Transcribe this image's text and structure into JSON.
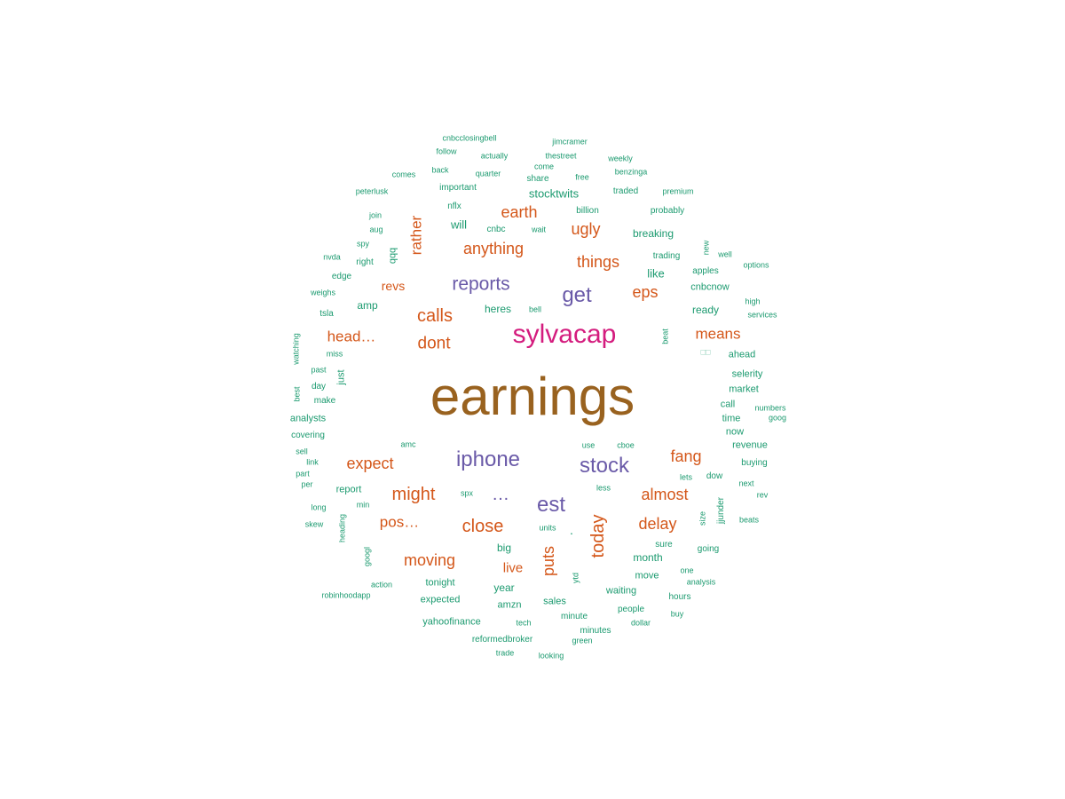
{
  "colors": {
    "earnings": "#99621f",
    "magenta": "#d41c7e",
    "purple": "#6a5aa8",
    "orange": "#d4571a",
    "green": "#1b9a6f"
  },
  "words": [
    {
      "text": "earnings",
      "c": "c1"
    },
    {
      "text": "sylvacap",
      "c": "c2"
    },
    {
      "text": "iphone",
      "c": "c3"
    },
    {
      "text": "stock",
      "c": "c3"
    },
    {
      "text": "get",
      "c": "c3"
    },
    {
      "text": "reports",
      "c": "c3"
    },
    {
      "text": "est",
      "c": "c3"
    },
    {
      "text": "…",
      "c": "c3"
    },
    {
      "text": "calls",
      "c": "c4"
    },
    {
      "text": "dont",
      "c": "c4"
    },
    {
      "text": "anything",
      "c": "c4"
    },
    {
      "text": "earth",
      "c": "c4"
    },
    {
      "text": "ugly",
      "c": "c4"
    },
    {
      "text": "things",
      "c": "c4"
    },
    {
      "text": "eps",
      "c": "c4"
    },
    {
      "text": "means",
      "c": "c4"
    },
    {
      "text": "head…",
      "c": "c4"
    },
    {
      "text": "revs",
      "c": "c4"
    },
    {
      "text": "rather",
      "c": "c4"
    },
    {
      "text": "expect",
      "c": "c4"
    },
    {
      "text": "might",
      "c": "c4"
    },
    {
      "text": "pos…",
      "c": "c4"
    },
    {
      "text": "close",
      "c": "c4"
    },
    {
      "text": "moving",
      "c": "c4"
    },
    {
      "text": "live",
      "c": "c4"
    },
    {
      "text": "puts",
      "c": "c4"
    },
    {
      "text": "today",
      "c": "c4"
    },
    {
      "text": "fang",
      "c": "c4"
    },
    {
      "text": "almost",
      "c": "c4"
    },
    {
      "text": "delay",
      "c": "c4"
    },
    {
      "text": "cnbcclosingbell",
      "c": "c5"
    },
    {
      "text": "jimcramer",
      "c": "c5"
    },
    {
      "text": "follow",
      "c": "c5"
    },
    {
      "text": "actually",
      "c": "c5"
    },
    {
      "text": "thestreet",
      "c": "c5"
    },
    {
      "text": "weekly",
      "c": "c5"
    },
    {
      "text": "come",
      "c": "c5"
    },
    {
      "text": "comes",
      "c": "c5"
    },
    {
      "text": "back",
      "c": "c5"
    },
    {
      "text": "quarter",
      "c": "c5"
    },
    {
      "text": "benzinga",
      "c": "c5"
    },
    {
      "text": "share",
      "c": "c5"
    },
    {
      "text": "free",
      "c": "c5"
    },
    {
      "text": "peterlusk",
      "c": "c5"
    },
    {
      "text": "important",
      "c": "c5"
    },
    {
      "text": "stocktwits",
      "c": "c5"
    },
    {
      "text": "traded",
      "c": "c5"
    },
    {
      "text": "premium",
      "c": "c5"
    },
    {
      "text": "nflx",
      "c": "c5"
    },
    {
      "text": "billion",
      "c": "c5"
    },
    {
      "text": "probably",
      "c": "c5"
    },
    {
      "text": "join",
      "c": "c5"
    },
    {
      "text": "will",
      "c": "c5"
    },
    {
      "text": "cnbc",
      "c": "c5"
    },
    {
      "text": "wait",
      "c": "c5"
    },
    {
      "text": "breaking",
      "c": "c5"
    },
    {
      "text": "aug",
      "c": "c5"
    },
    {
      "text": "spy",
      "c": "c5"
    },
    {
      "text": "qqq",
      "c": "c5"
    },
    {
      "text": "new",
      "c": "c5"
    },
    {
      "text": "nvda",
      "c": "c5"
    },
    {
      "text": "right",
      "c": "c5"
    },
    {
      "text": "trading",
      "c": "c5"
    },
    {
      "text": "well",
      "c": "c5"
    },
    {
      "text": "options",
      "c": "c5"
    },
    {
      "text": "edge",
      "c": "c5"
    },
    {
      "text": "apples",
      "c": "c5"
    },
    {
      "text": "like",
      "c": "c5"
    },
    {
      "text": "weighs",
      "c": "c5"
    },
    {
      "text": "cnbcnow",
      "c": "c5"
    },
    {
      "text": "amp",
      "c": "c5"
    },
    {
      "text": "heres",
      "c": "c5"
    },
    {
      "text": "bell",
      "c": "c5"
    },
    {
      "text": "high",
      "c": "c5"
    },
    {
      "text": "tsla",
      "c": "c5"
    },
    {
      "text": "ready",
      "c": "c5"
    },
    {
      "text": "services",
      "c": "c5"
    },
    {
      "text": "beat",
      "c": "c5"
    },
    {
      "text": "watching",
      "c": "c5"
    },
    {
      "text": "miss",
      "c": "c5"
    },
    {
      "text": "ahead",
      "c": "c5"
    },
    {
      "text": "□□",
      "c": "c6"
    },
    {
      "text": "past",
      "c": "c5"
    },
    {
      "text": "just",
      "c": "c5"
    },
    {
      "text": "selerity",
      "c": "c5"
    },
    {
      "text": "day",
      "c": "c5"
    },
    {
      "text": "best",
      "c": "c5"
    },
    {
      "text": "market",
      "c": "c5"
    },
    {
      "text": "make",
      "c": "c5"
    },
    {
      "text": "call",
      "c": "c5"
    },
    {
      "text": "numbers",
      "c": "c5"
    },
    {
      "text": "analysts",
      "c": "c5"
    },
    {
      "text": "time",
      "c": "c5"
    },
    {
      "text": "goog",
      "c": "c5"
    },
    {
      "text": "now",
      "c": "c5"
    },
    {
      "text": "covering",
      "c": "c5"
    },
    {
      "text": "amc",
      "c": "c5"
    },
    {
      "text": "use",
      "c": "c5"
    },
    {
      "text": "cboe",
      "c": "c5"
    },
    {
      "text": "revenue",
      "c": "c5"
    },
    {
      "text": "sell",
      "c": "c5"
    },
    {
      "text": "link",
      "c": "c5"
    },
    {
      "text": "buying",
      "c": "c5"
    },
    {
      "text": "part",
      "c": "c5"
    },
    {
      "text": "lets",
      "c": "c5"
    },
    {
      "text": "dow",
      "c": "c5"
    },
    {
      "text": "per",
      "c": "c5"
    },
    {
      "text": "report",
      "c": "c5"
    },
    {
      "text": "less",
      "c": "c5"
    },
    {
      "text": "next",
      "c": "c5"
    },
    {
      "text": "spx",
      "c": "c5"
    },
    {
      "text": "rev",
      "c": "c5"
    },
    {
      "text": "long",
      "c": "c5"
    },
    {
      "text": "min",
      "c": "c5"
    },
    {
      "text": "jjunder",
      "c": "c5"
    },
    {
      "text": "size",
      "c": "c5"
    },
    {
      "text": "skew",
      "c": "c5"
    },
    {
      "text": "heading",
      "c": "c5"
    },
    {
      "text": "units",
      "c": "c5"
    },
    {
      "text": "·",
      "c": "c5"
    },
    {
      "text": "beats",
      "c": "c5"
    },
    {
      "text": "big",
      "c": "c5"
    },
    {
      "text": "sure",
      "c": "c5"
    },
    {
      "text": "going",
      "c": "c5"
    },
    {
      "text": "googl",
      "c": "c5"
    },
    {
      "text": "month",
      "c": "c5"
    },
    {
      "text": "one",
      "c": "c5"
    },
    {
      "text": "move",
      "c": "c5"
    },
    {
      "text": "analysis",
      "c": "c5"
    },
    {
      "text": "ytd",
      "c": "c5"
    },
    {
      "text": "action",
      "c": "c5"
    },
    {
      "text": "tonight",
      "c": "c5"
    },
    {
      "text": "year",
      "c": "c5"
    },
    {
      "text": "waiting",
      "c": "c5"
    },
    {
      "text": "hours",
      "c": "c5"
    },
    {
      "text": "robinhoodapp",
      "c": "c5"
    },
    {
      "text": "expected",
      "c": "c5"
    },
    {
      "text": "sales",
      "c": "c5"
    },
    {
      "text": "amzn",
      "c": "c5"
    },
    {
      "text": "people",
      "c": "c5"
    },
    {
      "text": "buy",
      "c": "c5"
    },
    {
      "text": "minute",
      "c": "c5"
    },
    {
      "text": "yahoofinance",
      "c": "c5"
    },
    {
      "text": "tech",
      "c": "c5"
    },
    {
      "text": "dollar",
      "c": "c5"
    },
    {
      "text": "minutes",
      "c": "c5"
    },
    {
      "text": "reformedbroker",
      "c": "c5"
    },
    {
      "text": "green",
      "c": "c5"
    },
    {
      "text": "trade",
      "c": "c5"
    },
    {
      "text": "looking",
      "c": "c5"
    }
  ]
}
